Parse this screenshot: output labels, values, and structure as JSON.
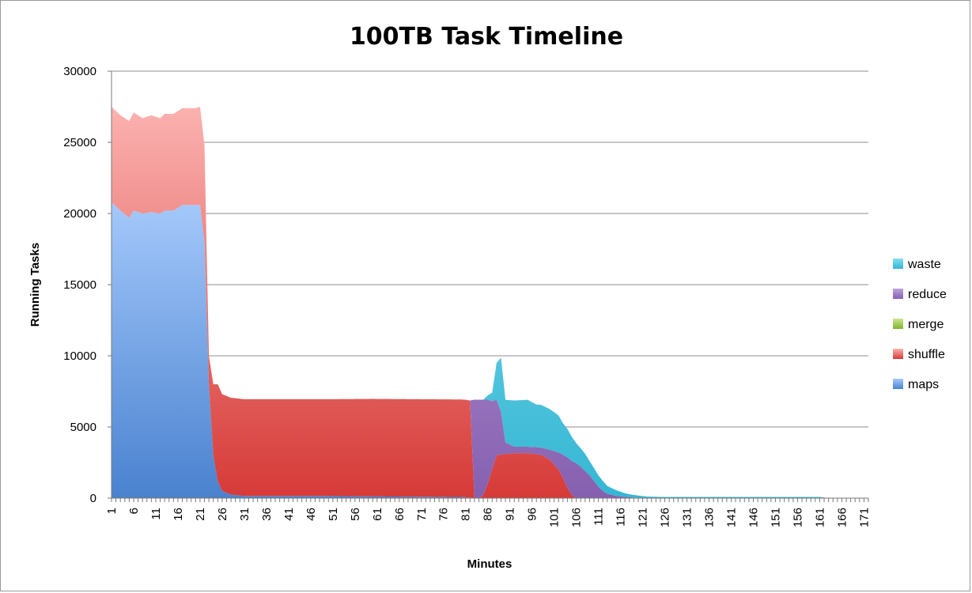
{
  "chart_data": {
    "type": "area",
    "stacked": true,
    "title": "100TB Task Timeline",
    "xlabel": "Minutes",
    "ylabel": "Running Tasks",
    "ylim": [
      0,
      30000
    ],
    "xlim": [
      1,
      172
    ],
    "yticks": [
      0,
      5000,
      10000,
      15000,
      20000,
      25000,
      30000
    ],
    "xticks": [
      1,
      6,
      11,
      16,
      21,
      26,
      31,
      36,
      41,
      46,
      51,
      56,
      61,
      66,
      71,
      76,
      81,
      86,
      91,
      96,
      101,
      106,
      111,
      116,
      121,
      126,
      131,
      136,
      141,
      146,
      151,
      156,
      161,
      166,
      171
    ],
    "grid": true,
    "legend_position": "right",
    "series": [
      {
        "name": "maps",
        "color": "#4a86d6",
        "points": [
          [
            1,
            20800
          ],
          [
            3,
            20200
          ],
          [
            5,
            19700
          ],
          [
            6,
            20200
          ],
          [
            8,
            20000
          ],
          [
            10,
            20100
          ],
          [
            12,
            20000
          ],
          [
            13,
            20200
          ],
          [
            15,
            20200
          ],
          [
            17,
            20600
          ],
          [
            20,
            20600
          ],
          [
            21,
            20600
          ],
          [
            22,
            18000
          ],
          [
            23,
            8000
          ],
          [
            24,
            3000
          ],
          [
            25,
            1200
          ],
          [
            26,
            500
          ],
          [
            28,
            250
          ],
          [
            31,
            150
          ],
          [
            40,
            150
          ],
          [
            50,
            150
          ],
          [
            60,
            120
          ],
          [
            70,
            100
          ],
          [
            80,
            80
          ],
          [
            81,
            60
          ],
          [
            82,
            40
          ],
          [
            83,
            20
          ],
          [
            90,
            10
          ],
          [
            172,
            0
          ]
        ]
      },
      {
        "name": "shuffle",
        "color": "#db4a49",
        "points": [
          [
            1,
            6700
          ],
          [
            3,
            6700
          ],
          [
            5,
            6800
          ],
          [
            6,
            6900
          ],
          [
            8,
            6700
          ],
          [
            10,
            6800
          ],
          [
            12,
            6700
          ],
          [
            13,
            6800
          ],
          [
            15,
            6800
          ],
          [
            17,
            6800
          ],
          [
            20,
            6800
          ],
          [
            21,
            6900
          ],
          [
            22,
            6800
          ],
          [
            23,
            2000
          ],
          [
            24,
            5000
          ],
          [
            25,
            6800
          ],
          [
            26,
            6800
          ],
          [
            28,
            6800
          ],
          [
            31,
            6800
          ],
          [
            40,
            6800
          ],
          [
            50,
            6800
          ],
          [
            60,
            6850
          ],
          [
            70,
            6850
          ],
          [
            78,
            6850
          ],
          [
            81,
            6850
          ],
          [
            82,
            6820
          ],
          [
            83,
            0
          ],
          [
            84,
            0
          ],
          [
            85,
            200
          ],
          [
            86,
            1000
          ],
          [
            87,
            2000
          ],
          [
            88,
            3000
          ],
          [
            90,
            3100
          ],
          [
            92,
            3150
          ],
          [
            95,
            3150
          ],
          [
            98,
            3050
          ],
          [
            100,
            2700
          ],
          [
            102,
            2000
          ],
          [
            103,
            1400
          ],
          [
            104,
            700
          ],
          [
            105,
            200
          ],
          [
            106,
            0
          ],
          [
            172,
            0
          ]
        ]
      },
      {
        "name": "merge",
        "color": "#9bc93f",
        "points": [
          [
            1,
            0
          ],
          [
            172,
            0
          ]
        ]
      },
      {
        "name": "reduce",
        "color": "#8e67b6",
        "points": [
          [
            1,
            0
          ],
          [
            81,
            0
          ],
          [
            82,
            0
          ],
          [
            83,
            6900
          ],
          [
            84,
            6900
          ],
          [
            85,
            6700
          ],
          [
            86,
            5900
          ],
          [
            87,
            4800
          ],
          [
            88,
            3900
          ],
          [
            89,
            3000
          ],
          [
            90,
            800
          ],
          [
            92,
            450
          ],
          [
            95,
            450
          ],
          [
            98,
            500
          ],
          [
            100,
            700
          ],
          [
            102,
            1200
          ],
          [
            103,
            1650
          ],
          [
            104,
            2150
          ],
          [
            105,
            2400
          ],
          [
            106,
            2450
          ],
          [
            107,
            2200
          ],
          [
            108,
            1900
          ],
          [
            109,
            1600
          ],
          [
            110,
            1200
          ],
          [
            111,
            800
          ],
          [
            112,
            500
          ],
          [
            113,
            300
          ],
          [
            115,
            150
          ],
          [
            118,
            50
          ],
          [
            122,
            0
          ],
          [
            172,
            0
          ]
        ]
      },
      {
        "name": "waste",
        "color": "#46c1db",
        "points": [
          [
            1,
            0
          ],
          [
            84,
            0
          ],
          [
            85,
            0
          ],
          [
            86,
            300
          ],
          [
            87,
            600
          ],
          [
            88,
            2600
          ],
          [
            89,
            3800
          ],
          [
            90,
            3000
          ],
          [
            92,
            3250
          ],
          [
            95,
            3300
          ],
          [
            97,
            3000
          ],
          [
            98,
            3000
          ],
          [
            100,
            2850
          ],
          [
            102,
            2600
          ],
          [
            103,
            2200
          ],
          [
            104,
            2000
          ],
          [
            105,
            1700
          ],
          [
            106,
            1400
          ],
          [
            107,
            1300
          ],
          [
            108,
            1200
          ],
          [
            109,
            1000
          ],
          [
            110,
            900
          ],
          [
            111,
            800
          ],
          [
            112,
            700
          ],
          [
            113,
            550
          ],
          [
            115,
            400
          ],
          [
            117,
            250
          ],
          [
            120,
            150
          ],
          [
            122,
            100
          ],
          [
            125,
            80
          ],
          [
            140,
            80
          ],
          [
            155,
            80
          ],
          [
            161,
            80
          ],
          [
            162,
            40
          ],
          [
            163,
            0
          ],
          [
            172,
            0
          ]
        ]
      }
    ],
    "legend_order": [
      "waste",
      "reduce",
      "merge",
      "shuffle",
      "maps"
    ]
  }
}
